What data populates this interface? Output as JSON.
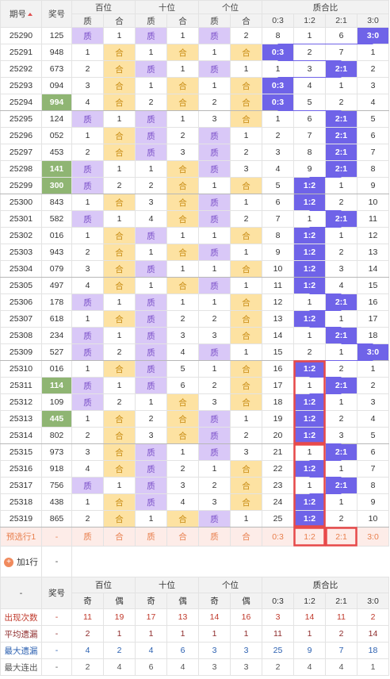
{
  "header": {
    "issue": "期号",
    "draw": "奖号",
    "groups": [
      "百位",
      "十位",
      "个位",
      "质合比"
    ],
    "sub": [
      "质",
      "合",
      "质",
      "合",
      "质",
      "合",
      "0:3",
      "1:2",
      "2:1",
      "3:0"
    ]
  },
  "rows": [
    {
      "issue": "25290",
      "draw": "125",
      "cells": [
        "质",
        1,
        "质",
        1,
        "质",
        2,
        8,
        1,
        6,
        "3:0"
      ]
    },
    {
      "issue": "25291",
      "draw": "948",
      "cells": [
        1,
        "合",
        1,
        "合",
        1,
        "合",
        "0:3",
        2,
        7,
        1
      ]
    },
    {
      "issue": "25292",
      "draw": "673",
      "cells": [
        2,
        "合",
        "质",
        1,
        "质",
        1,
        1,
        3,
        "2:1",
        2
      ]
    },
    {
      "issue": "25293",
      "draw": "094",
      "cells": [
        3,
        "合",
        1,
        "合",
        1,
        "合",
        "0:3",
        4,
        1,
        3
      ]
    },
    {
      "issue": "25294",
      "draw": "994",
      "draw_highlight": true,
      "cells": [
        4,
        "合",
        2,
        "合",
        2,
        "合",
        "0:3",
        5,
        2,
        4
      ]
    },
    {
      "issue": "25295",
      "draw": "124",
      "cells": [
        "质",
        1,
        "质",
        1,
        3,
        "合",
        1,
        6,
        "2:1",
        5
      ]
    },
    {
      "issue": "25296",
      "draw": "052",
      "cells": [
        1,
        "合",
        "质",
        2,
        "质",
        1,
        2,
        7,
        "2:1",
        6
      ]
    },
    {
      "issue": "25297",
      "draw": "453",
      "cells": [
        2,
        "合",
        "质",
        3,
        "质",
        2,
        3,
        8,
        "2:1",
        7
      ]
    },
    {
      "issue": "25298",
      "draw": "141",
      "draw_highlight": true,
      "cells": [
        "质",
        1,
        1,
        "合",
        "质",
        3,
        4,
        9,
        "2:1",
        8
      ]
    },
    {
      "issue": "25299",
      "draw": "300",
      "draw_highlight": true,
      "cells": [
        "质",
        2,
        2,
        "合",
        1,
        "合",
        5,
        "1:2",
        1,
        9
      ]
    },
    {
      "issue": "25300",
      "draw": "843",
      "cells": [
        1,
        "合",
        3,
        "合",
        "质",
        1,
        6,
        "1:2",
        2,
        10
      ]
    },
    {
      "issue": "25301",
      "draw": "582",
      "cells": [
        "质",
        1,
        4,
        "合",
        "质",
        2,
        7,
        1,
        "2:1",
        11
      ]
    },
    {
      "issue": "25302",
      "draw": "016",
      "cells": [
        1,
        "合",
        "质",
        1,
        1,
        "合",
        8,
        "1:2",
        1,
        12
      ]
    },
    {
      "issue": "25303",
      "draw": "943",
      "cells": [
        2,
        "合",
        1,
        "合",
        "质",
        1,
        9,
        "1:2",
        2,
        13
      ]
    },
    {
      "issue": "25304",
      "draw": "079",
      "cells": [
        3,
        "合",
        "质",
        1,
        1,
        "合",
        10,
        "1:2",
        3,
        14
      ]
    },
    {
      "issue": "25305",
      "draw": "497",
      "cells": [
        4,
        "合",
        1,
        "合",
        "质",
        1,
        11,
        "1:2",
        4,
        15
      ]
    },
    {
      "issue": "25306",
      "draw": "178",
      "cells": [
        "质",
        1,
        "质",
        1,
        1,
        "合",
        12,
        1,
        "2:1",
        16
      ]
    },
    {
      "issue": "25307",
      "draw": "618",
      "cells": [
        1,
        "合",
        "质",
        2,
        2,
        "合",
        13,
        "1:2",
        1,
        17
      ]
    },
    {
      "issue": "25308",
      "draw": "234",
      "cells": [
        "质",
        1,
        "质",
        3,
        3,
        "合",
        14,
        1,
        "2:1",
        18
      ]
    },
    {
      "issue": "25309",
      "draw": "527",
      "cells": [
        "质",
        2,
        "质",
        4,
        "质",
        1,
        15,
        2,
        1,
        "3:0"
      ]
    },
    {
      "issue": "25310",
      "draw": "016",
      "cells": [
        1,
        "合",
        "质",
        5,
        1,
        "合",
        16,
        "1:2",
        2,
        1
      ]
    },
    {
      "issue": "25311",
      "draw": "114",
      "draw_highlight": true,
      "cells": [
        "质",
        1,
        "质",
        6,
        2,
        "合",
        17,
        1,
        "2:1",
        2
      ]
    },
    {
      "issue": "25312",
      "draw": "109",
      "cells": [
        "质",
        2,
        1,
        "合",
        3,
        "合",
        18,
        "1:2",
        1,
        3
      ]
    },
    {
      "issue": "25313",
      "draw": "445",
      "draw_highlight": true,
      "cells": [
        1,
        "合",
        2,
        "合",
        "质",
        1,
        19,
        "1:2",
        2,
        4
      ]
    },
    {
      "issue": "25314",
      "draw": "802",
      "cells": [
        2,
        "合",
        3,
        "合",
        "质",
        2,
        20,
        "1:2",
        3,
        5
      ]
    },
    {
      "issue": "25315",
      "draw": "973",
      "cells": [
        3,
        "合",
        "质",
        1,
        "质",
        3,
        21,
        1,
        "2:1",
        6
      ]
    },
    {
      "issue": "25316",
      "draw": "918",
      "cells": [
        4,
        "合",
        "质",
        2,
        1,
        "合",
        22,
        "1:2",
        1,
        7
      ]
    },
    {
      "issue": "25317",
      "draw": "756",
      "cells": [
        "质",
        1,
        "质",
        3,
        2,
        "合",
        23,
        1,
        "2:1",
        8
      ]
    },
    {
      "issue": "25318",
      "draw": "438",
      "cells": [
        1,
        "合",
        "质",
        4,
        3,
        "合",
        24,
        "1:2",
        1,
        9
      ]
    },
    {
      "issue": "25319",
      "draw": "865",
      "cells": [
        2,
        "合",
        1,
        "合",
        "质",
        1,
        25,
        "1:2",
        2,
        10
      ]
    }
  ],
  "forecast": {
    "label": "预选行1",
    "draw": "-",
    "cells": [
      "质",
      "合",
      "质",
      "合",
      "质",
      "合",
      "0:3",
      "1:2",
      "2:1",
      "3:0"
    ]
  },
  "add_row": {
    "label": "加1行",
    "value": "-"
  },
  "stats": {
    "header": {
      "corner": "-",
      "draw": "奖号",
      "groups": [
        "百位",
        "十位",
        "个位",
        "质合比"
      ],
      "sub": [
        "奇",
        "偶",
        "奇",
        "偶",
        "奇",
        "偶",
        "0:3",
        "1:2",
        "2:1",
        "3:0"
      ]
    },
    "rows": [
      {
        "label": "出现次数",
        "draw": "-",
        "color": "#c0392b",
        "values": [
          11,
          19,
          17,
          13,
          14,
          16,
          3,
          14,
          11,
          2
        ]
      },
      {
        "label": "平均遗漏",
        "draw": "-",
        "color": "#8e2b2b",
        "values": [
          2,
          1,
          1,
          1,
          1,
          1,
          11,
          1,
          2,
          14
        ]
      },
      {
        "label": "最大遗漏",
        "draw": "-",
        "color": "#2a5fb0",
        "values": [
          4,
          2,
          4,
          6,
          3,
          3,
          25,
          9,
          7,
          18
        ]
      },
      {
        "label": "最大连出",
        "draw": "-",
        "color": "#555555",
        "values": [
          2,
          4,
          6,
          4,
          3,
          3,
          2,
          4,
          4,
          1
        ]
      }
    ]
  }
}
